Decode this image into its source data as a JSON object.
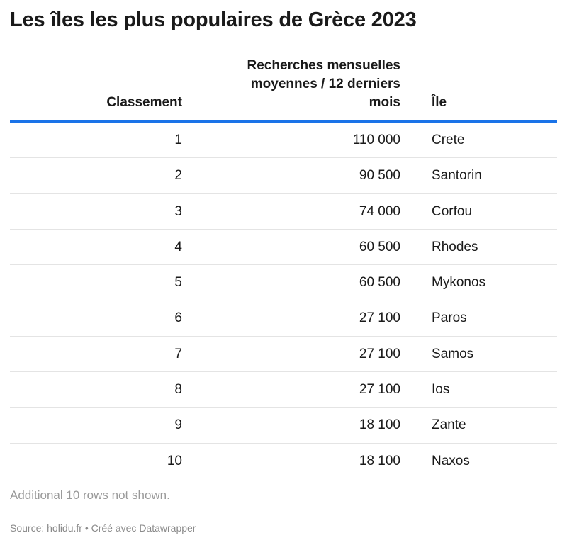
{
  "title": "Les îles les plus populaires de Grèce 2023",
  "table": {
    "columns": [
      "Classement",
      "Recherches mensuelles moyennes / 12 derniers mois",
      "Île"
    ],
    "rows": [
      {
        "rank": "1",
        "searches": "110 000",
        "island": "Crete"
      },
      {
        "rank": "2",
        "searches": "90 500",
        "island": "Santorin"
      },
      {
        "rank": "3",
        "searches": "74 000",
        "island": "Corfou"
      },
      {
        "rank": "4",
        "searches": "60 500",
        "island": "Rhodes"
      },
      {
        "rank": "5",
        "searches": "60 500",
        "island": "Mykonos"
      },
      {
        "rank": "6",
        "searches": "27 100",
        "island": "Paros"
      },
      {
        "rank": "7",
        "searches": "27 100",
        "island": "Samos"
      },
      {
        "rank": "8",
        "searches": "27 100",
        "island": "Ios"
      },
      {
        "rank": "9",
        "searches": "18 100",
        "island": "Zante"
      },
      {
        "rank": "10",
        "searches": "18 100",
        "island": "Naxos"
      }
    ],
    "note": "Additional 10 rows not shown."
  },
  "source": "Source: holidu.fr • Créé avec Datawrapper",
  "accent_color": "#1a73e8",
  "chart_data": {
    "type": "table",
    "title": "Les îles les plus populaires de Grèce 2023",
    "columns": [
      "Classement",
      "Recherches mensuelles moyennes / 12 derniers mois",
      "Île"
    ],
    "rows": [
      [
        1,
        110000,
        "Crete"
      ],
      [
        2,
        90500,
        "Santorin"
      ],
      [
        3,
        74000,
        "Corfou"
      ],
      [
        4,
        60500,
        "Rhodes"
      ],
      [
        5,
        60500,
        "Mykonos"
      ],
      [
        6,
        27100,
        "Paros"
      ],
      [
        7,
        27100,
        "Samos"
      ],
      [
        8,
        27100,
        "Ios"
      ],
      [
        9,
        18100,
        "Zante"
      ],
      [
        10,
        18100,
        "Naxos"
      ]
    ]
  }
}
